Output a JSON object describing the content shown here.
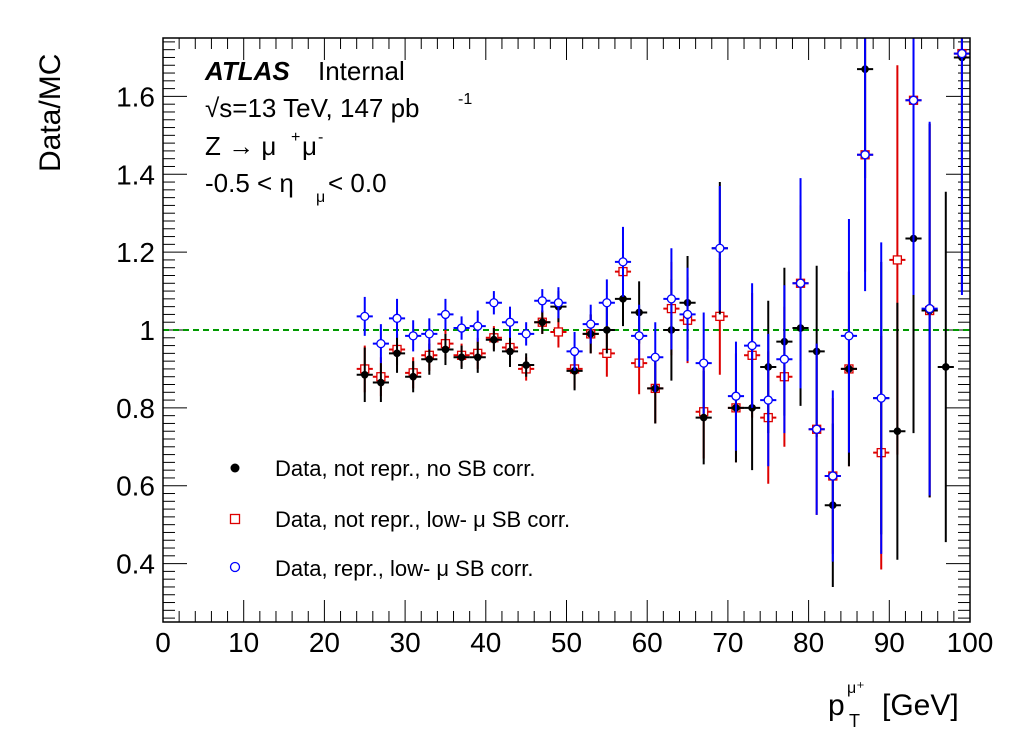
{
  "chart_data": {
    "type": "scatter",
    "ylabel": "Data/MC",
    "xlabel": {
      "main": "p",
      "sub": "T",
      "sup": "μ⁺",
      "unit": "[GeV]"
    },
    "xlim": [
      0,
      100
    ],
    "ylim": [
      0.25,
      1.75
    ],
    "xticks": [
      "0",
      "10",
      "20",
      "30",
      "40",
      "50",
      "60",
      "70",
      "80",
      "90",
      "100"
    ],
    "yticks": [
      "0.4",
      "0.6",
      "0.8",
      "1",
      "1.2",
      "1.4",
      "1.6"
    ],
    "ytick_values": [
      0.4,
      0.6,
      0.8,
      1.0,
      1.2,
      1.4,
      1.6
    ],
    "reference_line": {
      "y": 1.0,
      "color": "#009900",
      "style": "dashed"
    },
    "annotations": {
      "atlas": "ATLAS",
      "status": "Internal",
      "energy": "√s=13 TeV, 147 pb",
      "energy_sup": "-1",
      "process": "Z → μ",
      "process_sup1": "+",
      "process_mu2": "μ",
      "process_sup2": "-",
      "eta_pre": "-0.5 < η",
      "eta_sub": "μ",
      "eta_post": " < 0.0"
    },
    "legend": [
      {
        "label": "Data, not repr., no SB corr.",
        "marker": "filled-circle",
        "color": "#000000"
      },
      {
        "label": "Data, not repr., low- μ SB corr.",
        "marker": "open-square",
        "color": "#dd0000"
      },
      {
        "label": "Data, repr., low- μ SB corr.",
        "marker": "open-circle",
        "color": "#0000ff"
      }
    ],
    "series": [
      {
        "name": "Data, not repr., no SB corr.",
        "color": "#000000",
        "points": [
          [
            25,
            0.885,
            0.07
          ],
          [
            27,
            0.865,
            0.05
          ],
          [
            29,
            0.94,
            0.05
          ],
          [
            31,
            0.88,
            0.04
          ],
          [
            33,
            0.925,
            0.04
          ],
          [
            35,
            0.95,
            0.04
          ],
          [
            37,
            0.93,
            0.03
          ],
          [
            39,
            0.93,
            0.04
          ],
          [
            41,
            0.975,
            0.03
          ],
          [
            43,
            0.945,
            0.04
          ],
          [
            45,
            0.91,
            0.03
          ],
          [
            47,
            1.02,
            0.03
          ],
          [
            49,
            1.06,
            0.04
          ],
          [
            51,
            0.895,
            0.05
          ],
          [
            53,
            0.99,
            0.05
          ],
          [
            55,
            1.0,
            0.06
          ],
          [
            57,
            1.08,
            0.07
          ],
          [
            59,
            1.045,
            0.08
          ],
          [
            61,
            0.85,
            0.09
          ],
          [
            63,
            1.0,
            0.13
          ],
          [
            65,
            1.07,
            0.12
          ],
          [
            67,
            0.775,
            0.12
          ],
          [
            69,
            1.21,
            0.17
          ],
          [
            71,
            0.8,
            0.14
          ],
          [
            73,
            0.8,
            0.16
          ],
          [
            75,
            0.905,
            0.17
          ],
          [
            77,
            0.97,
            0.19
          ],
          [
            79,
            1.005,
            0.2
          ],
          [
            81,
            0.945,
            0.22
          ],
          [
            83,
            0.55,
            0.21
          ],
          [
            85,
            0.9,
            0.25
          ],
          [
            87,
            1.67,
            0.28
          ],
          [
            89,
            0.825,
            0.35
          ],
          [
            91,
            0.74,
            0.33
          ],
          [
            93,
            1.235,
            0.5
          ],
          [
            95,
            1.05,
            0.48
          ],
          [
            97,
            0.905,
            0.45
          ],
          [
            99,
            1.7,
            0.6
          ]
        ]
      },
      {
        "name": "Data, not repr., low- μ SB corr.",
        "color": "#dd0000",
        "points": [
          [
            25,
            0.9,
            0.06
          ],
          [
            27,
            0.88,
            0.05
          ],
          [
            29,
            0.95,
            0.04
          ],
          [
            31,
            0.89,
            0.04
          ],
          [
            33,
            0.935,
            0.04
          ],
          [
            35,
            0.965,
            0.04
          ],
          [
            37,
            0.935,
            0.03
          ],
          [
            39,
            0.94,
            0.04
          ],
          [
            41,
            0.98,
            0.03
          ],
          [
            43,
            0.955,
            0.04
          ],
          [
            45,
            0.9,
            0.03
          ],
          [
            47,
            1.02,
            0.03
          ],
          [
            49,
            0.995,
            0.04
          ],
          [
            51,
            0.9,
            0.05
          ],
          [
            53,
            0.99,
            0.05
          ],
          [
            55,
            0.94,
            0.06
          ],
          [
            57,
            1.15,
            0.07
          ],
          [
            59,
            0.915,
            0.08
          ],
          [
            61,
            0.85,
            0.09
          ],
          [
            63,
            1.055,
            0.12
          ],
          [
            65,
            1.025,
            0.11
          ],
          [
            67,
            0.79,
            0.12
          ],
          [
            69,
            1.035,
            0.15
          ],
          [
            71,
            0.8,
            0.14
          ],
          [
            73,
            0.935,
            0.16
          ],
          [
            75,
            0.775,
            0.17
          ],
          [
            77,
            0.88,
            0.18
          ],
          [
            79,
            1.12,
            0.2
          ],
          [
            81,
            0.745,
            0.22
          ],
          [
            83,
            0.625,
            0.2
          ],
          [
            85,
            0.9,
            0.25
          ],
          [
            87,
            1.45,
            0.3
          ],
          [
            89,
            0.685,
            0.3
          ],
          [
            91,
            1.18,
            0.5
          ],
          [
            93,
            1.59,
            0.5
          ],
          [
            95,
            1.05,
            0.48
          ],
          [
            99,
            1.71,
            0.6
          ]
        ]
      },
      {
        "name": "Data, repr., low- μ SB corr.",
        "color": "#0000ff",
        "points": [
          [
            25,
            1.035,
            0.05
          ],
          [
            27,
            0.965,
            0.05
          ],
          [
            29,
            1.03,
            0.05
          ],
          [
            31,
            0.985,
            0.04
          ],
          [
            33,
            0.99,
            0.04
          ],
          [
            35,
            1.04,
            0.04
          ],
          [
            37,
            1.005,
            0.03
          ],
          [
            39,
            1.01,
            0.04
          ],
          [
            41,
            1.07,
            0.03
          ],
          [
            43,
            1.02,
            0.04
          ],
          [
            45,
            0.99,
            0.03
          ],
          [
            47,
            1.075,
            0.03
          ],
          [
            49,
            1.07,
            0.04
          ],
          [
            51,
            0.945,
            0.05
          ],
          [
            53,
            1.015,
            0.05
          ],
          [
            55,
            1.07,
            0.06
          ],
          [
            57,
            1.175,
            0.09
          ],
          [
            59,
            0.985,
            0.08
          ],
          [
            61,
            0.93,
            0.09
          ],
          [
            63,
            1.08,
            0.13
          ],
          [
            65,
            1.04,
            0.12
          ],
          [
            67,
            0.915,
            0.13
          ],
          [
            69,
            1.21,
            0.16
          ],
          [
            71,
            0.83,
            0.14
          ],
          [
            73,
            0.96,
            0.16
          ],
          [
            75,
            0.82,
            0.17
          ],
          [
            77,
            0.925,
            0.19
          ],
          [
            79,
            1.12,
            0.27
          ],
          [
            81,
            0.745,
            0.22
          ],
          [
            83,
            0.625,
            0.22
          ],
          [
            85,
            0.985,
            0.3
          ],
          [
            87,
            1.45,
            0.35
          ],
          [
            89,
            0.825,
            0.4
          ],
          [
            93,
            1.59,
            0.5
          ],
          [
            95,
            1.055,
            0.48
          ],
          [
            99,
            1.71,
            0.62
          ]
        ]
      }
    ]
  }
}
